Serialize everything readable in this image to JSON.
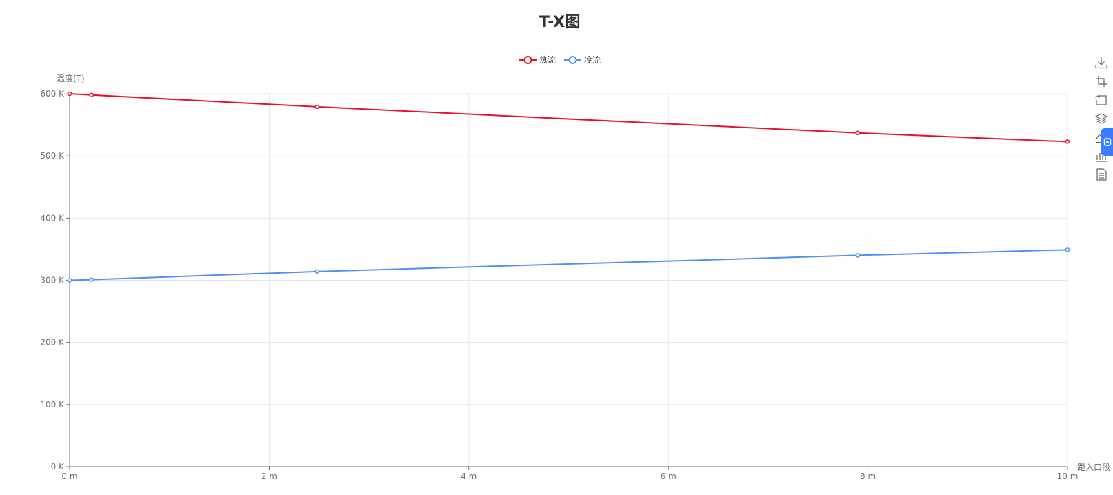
{
  "chart_data": {
    "type": "line",
    "title": "T-X图",
    "xlabel": "距入口段",
    "ylabel": "温度(T)",
    "x_unit": " m",
    "y_unit": " K",
    "xlim": [
      0,
      10
    ],
    "ylim": [
      0,
      600
    ],
    "x_ticks": [
      0,
      2,
      4,
      6,
      8,
      10
    ],
    "y_ticks": [
      0,
      100,
      200,
      300,
      400,
      500,
      600
    ],
    "grid": true,
    "legend_position": "top-center",
    "series": [
      {
        "name": "热流",
        "color": "#e8112d",
        "points": [
          [
            0,
            600
          ],
          [
            0.22,
            598
          ],
          [
            2.48,
            579
          ],
          [
            7.9,
            537
          ],
          [
            10,
            523
          ]
        ]
      },
      {
        "name": "冷流",
        "color": "#4f8ff5",
        "points": [
          [
            0,
            300
          ],
          [
            0.22,
            301
          ],
          [
            2.48,
            314
          ],
          [
            7.9,
            340
          ],
          [
            10,
            349
          ]
        ]
      }
    ]
  },
  "toolbox": {
    "icons": [
      "download-icon",
      "crop-icon",
      "undo-icon",
      "layers-icon",
      "line-chart-icon",
      "bar-chart-icon",
      "data-view-icon"
    ],
    "side_tab_icon": "settings-icon"
  }
}
